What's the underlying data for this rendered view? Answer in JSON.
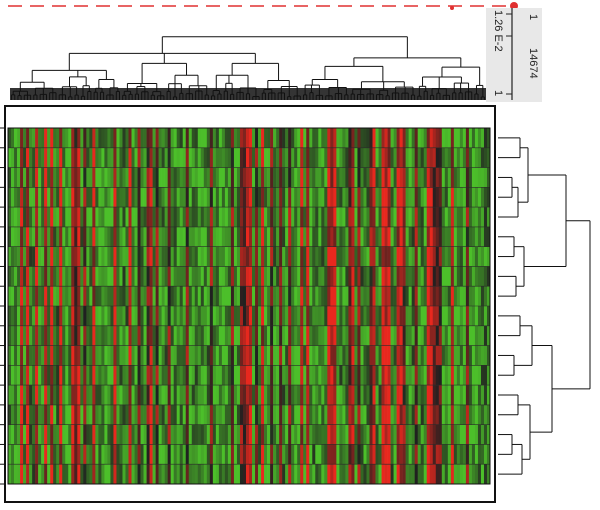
{
  "chart_data": {
    "type": "heatmap",
    "title": "",
    "xlabel": "",
    "ylabel": "",
    "row_count": 18,
    "column_count": 160,
    "color_scale": {
      "low": "#4cbf2a",
      "mid": "#202020",
      "high": "#e8281e"
    },
    "top_dendrogram": {
      "axis_ticks": [
        "1",
        "1.26 E-2",
        "14674",
        "1"
      ]
    },
    "right_dendrogram": {
      "clusters": [
        [
          1,
          2,
          3,
          4,
          5,
          6,
          7,
          8,
          9
        ],
        [
          10,
          11,
          12,
          13,
          14,
          15,
          16,
          17,
          18
        ]
      ]
    },
    "selection_line_color": "#e03030",
    "grid": true,
    "legend": "none"
  }
}
